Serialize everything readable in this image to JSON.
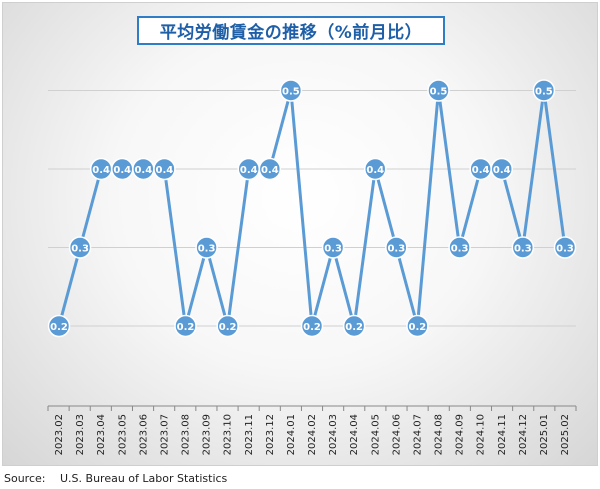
{
  "chart": {
    "title": "平均労働賃金の推移（%前月比）"
  },
  "source": {
    "label": "Source:",
    "text": "U.S. Bureau of Labor Statistics"
  },
  "colors": {
    "line": "#5b9bd5",
    "marker_fill": "#5b9bd5",
    "marker_stroke": "#ffffff",
    "label_text": "#ffffff",
    "grid": "#d0d0d0",
    "title_border": "#2e7dc6",
    "title_text": "#1f5fa8"
  },
  "chart_data": {
    "type": "line",
    "title": "平均労働賃金の推移（%前月比）",
    "xlabel": "",
    "ylabel": "",
    "ylim": [
      0,
      0.6
    ],
    "grid": true,
    "legend": "none",
    "categories": [
      "2023.02",
      "2023.03",
      "2023.04",
      "2023.05",
      "2023.06",
      "2023.07",
      "2023.08",
      "2023.09",
      "2023.10",
      "2023.11",
      "2023.12",
      "2024.01",
      "2024.02",
      "2024.03",
      "2024.04",
      "2024.05",
      "2024.06",
      "2024.07",
      "2024.08",
      "2024.09",
      "2024.10",
      "2024.11",
      "2024.12",
      "2025.01",
      "2025.02"
    ],
    "series": [
      {
        "values": [
          0.2,
          0.3,
          0.4,
          0.4,
          0.4,
          0.4,
          0.2,
          0.3,
          0.2,
          0.4,
          0.4,
          0.5,
          0.2,
          0.3,
          0.2,
          0.4,
          0.3,
          0.2,
          0.5,
          0.3,
          0.4,
          0.4,
          0.3,
          0.5,
          0.3
        ],
        "labels": [
          "0.2",
          "0.3",
          "0.4",
          "0.4",
          "0.4",
          "0.4",
          "0.2",
          "0.3",
          "0.2",
          "0.4",
          "0.4",
          "0.5",
          "0.2",
          "0.3",
          "0.2",
          "0.4",
          "0.3",
          "0.2",
          "0.5",
          "0.3",
          "0.4",
          "0.4",
          "0.3",
          "0.5",
          "0.3"
        ]
      }
    ]
  }
}
